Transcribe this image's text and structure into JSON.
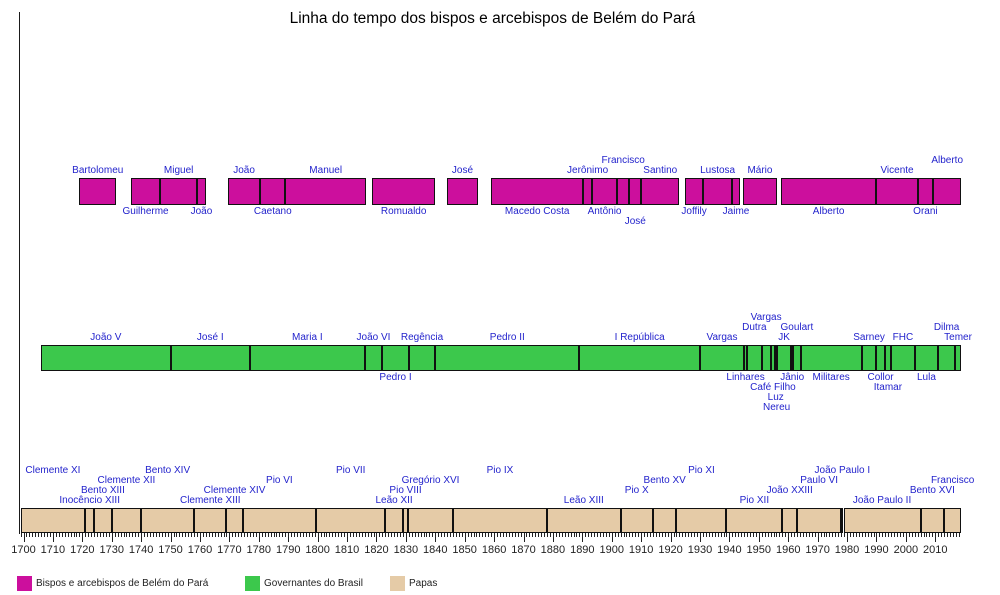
{
  "title": "Linha do tempo dos bispos e arcebispos de Belém do Pará",
  "legend": [
    {
      "label": "Bispos e arcebispos de Belém do Pará",
      "color": "#cc0f9d"
    },
    {
      "label": "Governantes do Brasil",
      "color": "#3cc84c"
    },
    {
      "label": "Papas",
      "color": "#e5cba7"
    }
  ],
  "chart_data": {
    "type": "timeline",
    "title": "Linha do tempo dos bispos e arcebispos de Belém do Pará",
    "x_axis": {
      "range_years": [
        1700,
        2018
      ],
      "major_tick_interval": 10,
      "minor_tick_interval": 1,
      "first_tick_label": "1700",
      "last_tick_label": "2010"
    },
    "bands": [
      {
        "id": "bishops",
        "name": "Bispos e arcebispos de Belém do Pará",
        "color": "#cc0f9d",
        "segments": [
          {
            "name": "Bartolomeu",
            "start": 1719,
            "end": 1731.5,
            "side": "above",
            "row": 0
          },
          {
            "name": "Guilherme",
            "start": 1736.5,
            "end": 1746.5,
            "side": "below",
            "row": 0
          },
          {
            "name": "Miguel",
            "start": 1746.5,
            "end": 1759,
            "side": "above",
            "row": 0
          },
          {
            "name": "João",
            "start": 1759,
            "end": 1762,
            "side": "below",
            "row": 0
          },
          {
            "name": "João",
            "start": 1769.5,
            "end": 1780.5,
            "side": "above",
            "row": 0
          },
          {
            "name": "Caetano",
            "start": 1780.5,
            "end": 1789,
            "side": "below",
            "row": 0
          },
          {
            "name": "Manuel",
            "start": 1789,
            "end": 1816.5,
            "side": "above",
            "row": 0
          },
          {
            "name": "Romualdo",
            "start": 1818.5,
            "end": 1840,
            "side": "below",
            "row": 0
          },
          {
            "name": "José",
            "start": 1844,
            "end": 1854.5,
            "side": "above",
            "row": 0
          },
          {
            "name": "Macedo Costa",
            "start": 1859,
            "end": 1890.3,
            "side": "below",
            "row": 0
          },
          {
            "name": "Jerônimo",
            "start": 1890.3,
            "end": 1893.3,
            "side": "above",
            "row": 0
          },
          {
            "name": "Antônio",
            "start": 1893.3,
            "end": 1901.8,
            "side": "below",
            "row": 0
          },
          {
            "name": "Francisco",
            "start": 1901.8,
            "end": 1906,
            "side": "above",
            "row": 1
          },
          {
            "name": "José",
            "start": 1906,
            "end": 1910,
            "side": "below",
            "row": 1
          },
          {
            "name": "Santino",
            "start": 1910,
            "end": 1923,
            "side": "above",
            "row": 0
          },
          {
            "name": "Joffily",
            "start": 1925,
            "end": 1931,
            "side": "below",
            "row": 0
          },
          {
            "name": "Lustosa",
            "start": 1931,
            "end": 1941,
            "side": "above",
            "row": 0
          },
          {
            "name": "Jaime",
            "start": 1941,
            "end": 1943.5,
            "side": "below",
            "row": 0
          },
          {
            "name": "Mário",
            "start": 1944.5,
            "end": 1956.3,
            "side": "above",
            "row": 0
          },
          {
            "name": "Alberto",
            "start": 1957.5,
            "end": 1990,
            "side": "below",
            "row": 0
          },
          {
            "name": "Vicente",
            "start": 1990,
            "end": 2004,
            "side": "above",
            "row": 0
          },
          {
            "name": "Orani",
            "start": 2004,
            "end": 2009.3,
            "side": "below",
            "row": 0
          },
          {
            "name": "Alberto",
            "start": 2009.3,
            "end": 2018.8,
            "side": "above",
            "row": 1
          }
        ]
      },
      {
        "id": "governantes",
        "name": "Governantes do Brasil",
        "color": "#3cc84c",
        "segments": [
          {
            "name": "João V",
            "start": 1706,
            "end": 1750,
            "side": "above",
            "row": 0
          },
          {
            "name": "José I",
            "start": 1750,
            "end": 1777,
            "side": "above",
            "row": 0
          },
          {
            "name": "Maria I",
            "start": 1777,
            "end": 1816,
            "side": "above",
            "row": 0
          },
          {
            "name": "João VI",
            "start": 1816,
            "end": 1822,
            "side": "above",
            "row": 0
          },
          {
            "name": "Pedro I",
            "start": 1822,
            "end": 1831,
            "side": "below",
            "row": 0
          },
          {
            "name": "Regência",
            "start": 1831,
            "end": 1840,
            "side": "above",
            "row": 0
          },
          {
            "name": "Pedro II",
            "start": 1840,
            "end": 1889,
            "side": "above",
            "row": 0
          },
          {
            "name": "I República",
            "start": 1889,
            "end": 1930,
            "side": "above",
            "row": 0
          },
          {
            "name": "Vargas",
            "start": 1930,
            "end": 1945,
            "side": "above",
            "row": 0
          },
          {
            "name": "Linhares",
            "start": 1945,
            "end": 1946,
            "side": "below",
            "row": 0
          },
          {
            "name": "Dutra",
            "start": 1946,
            "end": 1951,
            "side": "above",
            "row": 1
          },
          {
            "name": "Vargas",
            "start": 1951,
            "end": 1954,
            "side": "above",
            "row": 2
          },
          {
            "name": "Café Filho",
            "start": 1954,
            "end": 1955.6,
            "side": "below",
            "row": 1
          },
          {
            "name": "Luz",
            "start": 1955.6,
            "end": 1955.9,
            "side": "below",
            "row": 2
          },
          {
            "name": "Nereu",
            "start": 1955.9,
            "end": 1956.2,
            "side": "below",
            "row": 3
          },
          {
            "name": "JK",
            "start": 1956.2,
            "end": 1961,
            "side": "above",
            "row": 0
          },
          {
            "name": "Jânio",
            "start": 1961,
            "end": 1961.7,
            "side": "below",
            "row": 0
          },
          {
            "name": "Goulart",
            "start": 1961.7,
            "end": 1964.2,
            "side": "above",
            "row": 1
          },
          {
            "name": "Militares",
            "start": 1964.2,
            "end": 1985,
            "side": "below",
            "row": 0
          },
          {
            "name": "Sarney",
            "start": 1985,
            "end": 1990,
            "side": "above",
            "row": 0
          },
          {
            "name": "Collor",
            "start": 1990,
            "end": 1992.8,
            "side": "below",
            "row": 0
          },
          {
            "name": "Itamar",
            "start": 1992.8,
            "end": 1995,
            "side": "below",
            "row": 1
          },
          {
            "name": "FHC",
            "start": 1995,
            "end": 2003,
            "side": "above",
            "row": 0
          },
          {
            "name": "Lula",
            "start": 2003,
            "end": 2011,
            "side": "below",
            "row": 0
          },
          {
            "name": "Dilma",
            "start": 2011,
            "end": 2016.7,
            "side": "above",
            "row": 1
          },
          {
            "name": "Temer",
            "start": 2016.7,
            "end": 2018.8,
            "side": "above",
            "row": 0
          }
        ]
      },
      {
        "id": "papas",
        "name": "Papas",
        "color": "#e5cba7",
        "segments": [
          {
            "name": "Clemente XI",
            "start": 1699,
            "end": 1721,
            "side": "above",
            "row": 3
          },
          {
            "name": "Inocêncio XIII",
            "start": 1721,
            "end": 1724,
            "side": "above",
            "row": 0
          },
          {
            "name": "Bento XIII",
            "start": 1724,
            "end": 1730,
            "side": "above",
            "row": 1
          },
          {
            "name": "Clemente XII",
            "start": 1730,
            "end": 1740,
            "side": "above",
            "row": 2
          },
          {
            "name": "Bento XIV",
            "start": 1740,
            "end": 1758,
            "side": "above",
            "row": 3
          },
          {
            "name": "Clemente XIII",
            "start": 1758,
            "end": 1769,
            "side": "above",
            "row": 0
          },
          {
            "name": "Clemente XIV",
            "start": 1769,
            "end": 1774.5,
            "side": "above",
            "row": 1
          },
          {
            "name": "Pio VI",
            "start": 1774.5,
            "end": 1799.5,
            "side": "above",
            "row": 2
          },
          {
            "name": "Pio VII",
            "start": 1799.5,
            "end": 1823,
            "side": "above",
            "row": 3
          },
          {
            "name": "Leão XII",
            "start": 1823,
            "end": 1829,
            "side": "above",
            "row": 0
          },
          {
            "name": "Pio VIII",
            "start": 1829,
            "end": 1830.8,
            "side": "above",
            "row": 1
          },
          {
            "name": "Gregório XVI",
            "start": 1830.8,
            "end": 1846,
            "side": "above",
            "row": 2
          },
          {
            "name": "Pio IX",
            "start": 1846,
            "end": 1878,
            "side": "above",
            "row": 3
          },
          {
            "name": "Leão XIII",
            "start": 1878,
            "end": 1903,
            "side": "above",
            "row": 0
          },
          {
            "name": "Pio X",
            "start": 1903,
            "end": 1914,
            "side": "above",
            "row": 1
          },
          {
            "name": "Bento XV",
            "start": 1914,
            "end": 1922,
            "side": "above",
            "row": 2
          },
          {
            "name": "Pio XI",
            "start": 1922,
            "end": 1939,
            "side": "above",
            "row": 3
          },
          {
            "name": "Pio XII",
            "start": 1939,
            "end": 1958,
            "side": "above",
            "row": 0
          },
          {
            "name": "João XXIII",
            "start": 1958,
            "end": 1963,
            "side": "above",
            "row": 1
          },
          {
            "name": "Paulo VI",
            "start": 1963,
            "end": 1978,
            "side": "above",
            "row": 2
          },
          {
            "name": "João Paulo I",
            "start": 1978,
            "end": 1978.8,
            "side": "above",
            "row": 3
          },
          {
            "name": "João Paulo II",
            "start": 1978.8,
            "end": 2005,
            "side": "above",
            "row": 0
          },
          {
            "name": "Bento XVI",
            "start": 2005,
            "end": 2013,
            "side": "above",
            "row": 1
          },
          {
            "name": "Francisco",
            "start": 2013,
            "end": 2018.8,
            "side": "above",
            "row": 2
          }
        ]
      }
    ]
  }
}
